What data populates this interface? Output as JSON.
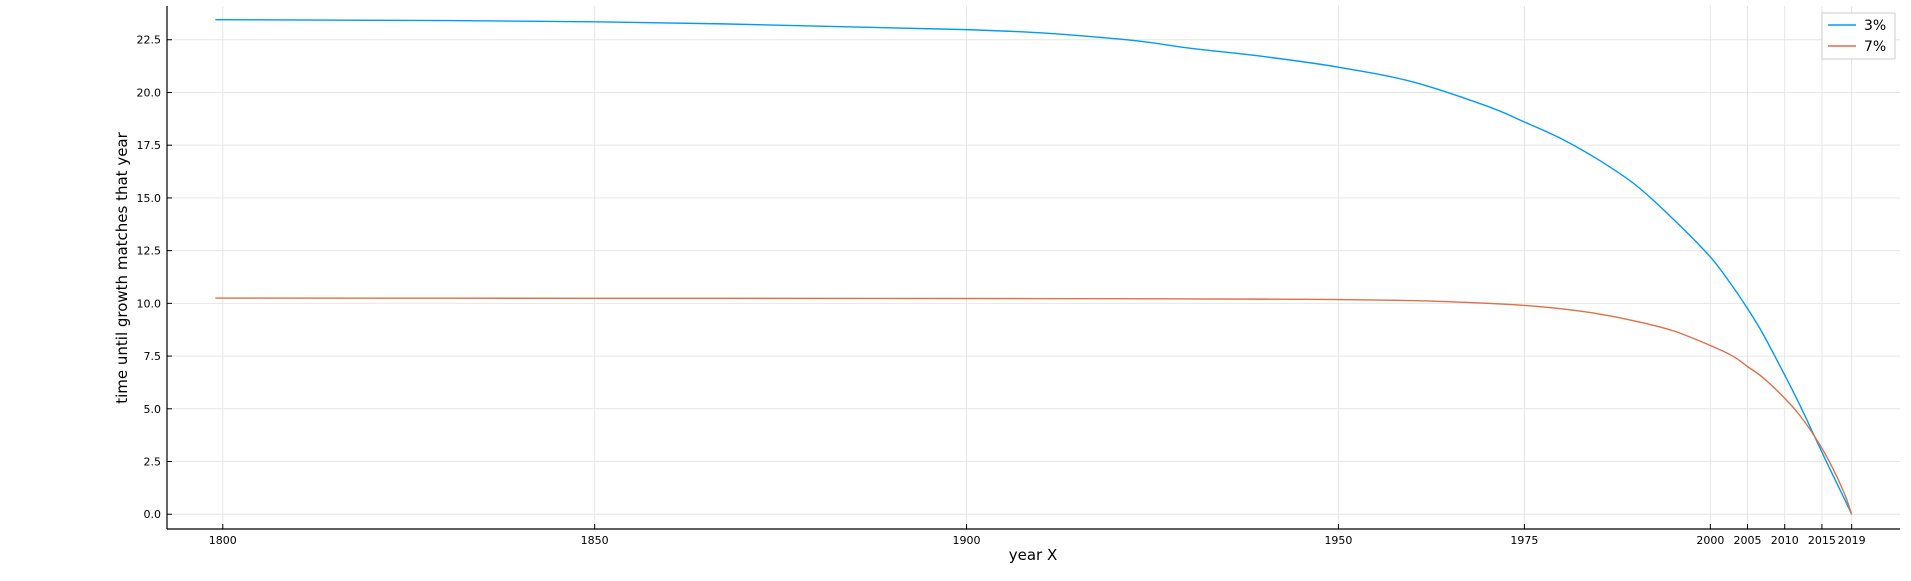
{
  "chart_data": {
    "type": "line",
    "title": "",
    "xlabel": "year X",
    "ylabel": "time until growth matches that year",
    "xlim": [
      1792.5,
      2025.5
    ],
    "ylim": [
      -0.7,
      24.1
    ],
    "xticks": [
      1800,
      1850,
      1900,
      1950,
      1975,
      2000,
      2005,
      2010,
      2015,
      2019
    ],
    "xtick_labels": [
      "1800",
      "1850",
      "1900",
      "1950",
      "1975",
      "2000",
      "2005",
      "2010",
      "2015",
      "2019"
    ],
    "yticks": [
      0,
      2.5,
      5,
      7.5,
      10,
      12.5,
      15,
      17.5,
      20,
      22.5
    ],
    "ytick_labels": [
      "0.0",
      "2.5",
      "5.0",
      "7.5",
      "10.0",
      "12.5",
      "15.0",
      "17.5",
      "20.0",
      "22.5"
    ],
    "grid": true,
    "legend": "top-right",
    "x": [
      1799,
      1850,
      1900,
      1920,
      1930,
      1940,
      1950,
      1960,
      1970,
      1975,
      1980,
      1985,
      1990,
      1995,
      2000,
      2003,
      2005,
      2007,
      2010,
      2012,
      2014,
      2016,
      2018,
      2019
    ],
    "series": [
      {
        "name": "3%",
        "color": "#009af9",
        "values": [
          23.45,
          23.35,
          22.98,
          22.55,
          22.1,
          21.7,
          21.2,
          20.5,
          19.35,
          18.6,
          17.8,
          16.8,
          15.6,
          14.0,
          12.2,
          10.8,
          9.75,
          8.6,
          6.6,
          5.2,
          3.7,
          2.2,
          0.75,
          0.0
        ]
      },
      {
        "name": "7%",
        "color": "#e26f46",
        "values": [
          10.25,
          10.24,
          10.23,
          10.22,
          10.21,
          10.2,
          10.18,
          10.13,
          10.0,
          9.9,
          9.74,
          9.5,
          9.15,
          8.7,
          8.0,
          7.5,
          7.0,
          6.5,
          5.5,
          4.7,
          3.7,
          2.5,
          1.0,
          0.0
        ]
      }
    ]
  }
}
